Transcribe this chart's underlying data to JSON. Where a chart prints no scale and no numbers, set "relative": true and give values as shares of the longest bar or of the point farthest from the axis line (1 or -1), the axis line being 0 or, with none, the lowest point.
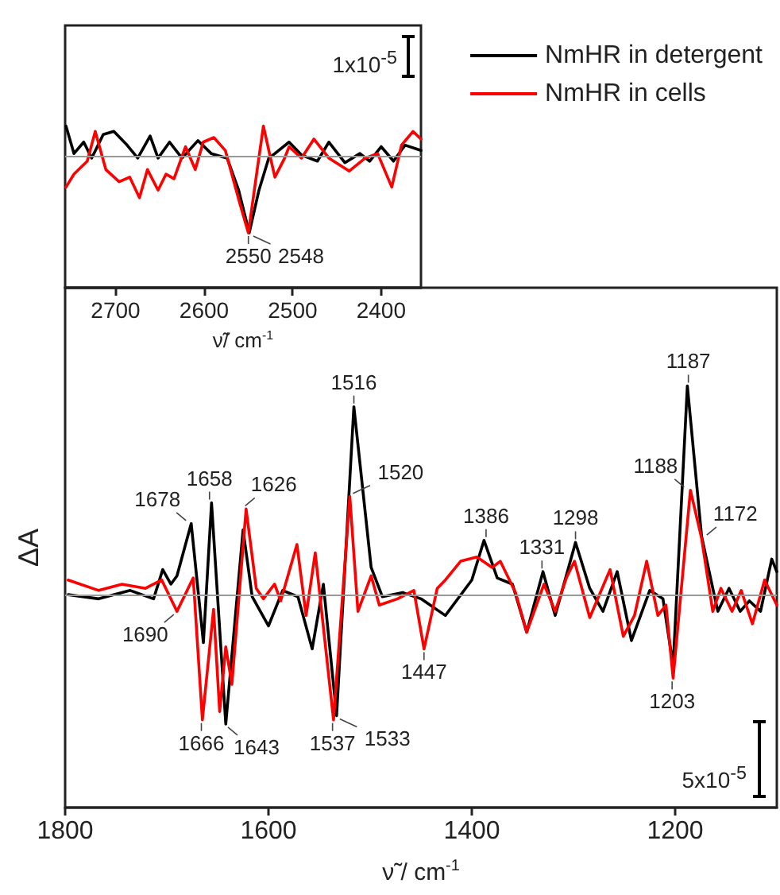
{
  "chart_data": [
    {
      "type": "line",
      "relative": true,
      "xlabel": "ν̃/ cm$^{-1}$",
      "xlim": [
        2757,
        2355
      ],
      "xticks": [
        2700,
        2600,
        2500,
        2400
      ],
      "ref_lines": [
        {
          "axis": "y",
          "value": 0,
          "color": "#999999"
        }
      ],
      "annotations": [
        "1x10$^{-5}$",
        {
          "text": "2550",
          "x": 2550,
          "y": -1.0
        },
        {
          "text": "2548",
          "x": 2548,
          "y": -1.0
        }
      ],
      "series": [
        {
          "color": "#000000",
          "x": [
            2756,
            2747,
            2736,
            2727,
            2714,
            2702,
            2687,
            2675,
            2661,
            2652,
            2639,
            2625,
            2607,
            2592,
            2574,
            2561,
            2549,
            2538,
            2527,
            2520,
            2504,
            2490,
            2472,
            2459,
            2441,
            2424,
            2413,
            2400,
            2386,
            2373,
            2355
          ],
          "values": [
            0.4,
            0.04,
            0.19,
            -0.02,
            0.29,
            0.33,
            0.15,
            -0.02,
            0.27,
            -0.02,
            0.19,
            -0.02,
            0.21,
            0.04,
            -0.02,
            -0.44,
            -1.0,
            -0.44,
            -0.02,
            0.04,
            0.19,
            0.02,
            -0.06,
            0.19,
            -0.08,
            0.04,
            -0.06,
            0.13,
            -0.06,
            0.15,
            0.08
          ]
        },
        {
          "color": "#ff0000",
          "x": [
            2756,
            2747,
            2732,
            2723,
            2711,
            2696,
            2684,
            2673,
            2664,
            2652,
            2643,
            2634,
            2621,
            2610,
            2601,
            2589,
            2576,
            2560,
            2550,
            2540,
            2533,
            2525,
            2520,
            2509,
            2504,
            2490,
            2476,
            2459,
            2436,
            2418,
            2404,
            2388,
            2377,
            2364,
            2355
          ],
          "values": [
            -0.4,
            -0.23,
            -0.06,
            0.33,
            -0.17,
            -0.33,
            -0.27,
            -0.54,
            -0.17,
            -0.44,
            -0.23,
            -0.29,
            0.13,
            -0.17,
            0.19,
            0.25,
            0.08,
            -0.6,
            -1.0,
            -0.17,
            0.4,
            -0.02,
            -0.27,
            -0.02,
            0.13,
            -0.02,
            0.23,
            -0.02,
            -0.19,
            -0.02,
            0.04,
            -0.4,
            0.15,
            0.33,
            0.23
          ]
        }
      ]
    },
    {
      "type": "line",
      "relative": true,
      "xlabel": "ν̃ / cm$^{-1}$",
      "ylabel": "ΔA",
      "xlim": [
        1800,
        1100
      ],
      "xticks": [
        1800,
        1600,
        1400,
        1200
      ],
      "legend": "top right",
      "ref_lines": [
        {
          "axis": "y",
          "value": 0,
          "color": "#999999"
        }
      ],
      "annotations": [
        "5x10$^{-5}$",
        {
          "text": "1678",
          "x": 1678,
          "y": 0.34
        },
        {
          "text": "1658",
          "x": 1658,
          "y": 0.44
        },
        {
          "text": "1626",
          "x": 1626,
          "y": 0.41
        },
        {
          "text": "1520",
          "x": 1520,
          "y": 0.47
        },
        {
          "text": "1516",
          "x": 1516,
          "y": 0.9
        },
        {
          "text": "1386",
          "x": 1386,
          "y": 0.26
        },
        {
          "text": "1331",
          "x": 1331,
          "y": 0.11
        },
        {
          "text": "1298",
          "x": 1298,
          "y": 0.25
        },
        {
          "text": "1188",
          "x": 1188,
          "y": 0.5
        },
        {
          "text": "1187",
          "x": 1187,
          "y": 1.0
        },
        {
          "text": "1172",
          "x": 1172,
          "y": 0.27
        },
        {
          "text": "1690",
          "x": 1690,
          "y": -0.08
        },
        {
          "text": "1666",
          "x": 1666,
          "y": -0.6
        },
        {
          "text": "1643",
          "x": 1643,
          "y": -0.62
        },
        {
          "text": "1537",
          "x": 1537,
          "y": -0.6
        },
        {
          "text": "1533",
          "x": 1533,
          "y": -0.58
        },
        {
          "text": "1447",
          "x": 1447,
          "y": -0.26
        },
        {
          "text": "1203",
          "x": 1203,
          "y": -0.4
        }
      ],
      "series": [
        {
          "name": "NmHR in detergent",
          "color": "#000000",
          "x": [
            1797,
            1767,
            1736,
            1713,
            1704,
            1696,
            1690,
            1676,
            1664,
            1656,
            1642,
            1625,
            1616,
            1600,
            1586,
            1571,
            1557,
            1546,
            1533,
            1516,
            1499,
            1488,
            1468,
            1450,
            1426,
            1400,
            1388,
            1375,
            1360,
            1346,
            1330,
            1318,
            1298,
            1284,
            1271,
            1257,
            1243,
            1225,
            1212,
            1202,
            1188,
            1174,
            1163,
            1158,
            1147,
            1136,
            1127,
            1116,
            1105,
            1100
          ],
          "values": [
            0,
            -0.02,
            0.02,
            -0.02,
            0.12,
            0.05,
            0.09,
            0.34,
            -0.23,
            0.44,
            -0.62,
            0.31,
            -0.01,
            -0.15,
            0.02,
            -0.01,
            -0.26,
            0.05,
            -0.58,
            0.9,
            0.13,
            -0.01,
            0.01,
            -0.02,
            -0.1,
            0.07,
            0.26,
            0.08,
            0.05,
            -0.18,
            0.11,
            -0.1,
            0.25,
            0.03,
            -0.08,
            0.11,
            -0.22,
            0.02,
            -0.02,
            -0.34,
            1.0,
            0.28,
            0.03,
            -0.08,
            0.03,
            -0.08,
            -0.03,
            -0.08,
            0.17,
            0.11
          ]
        },
        {
          "name": "NmHR in cells",
          "color": "#ff0000",
          "x": [
            1797,
            1767,
            1744,
            1721,
            1705,
            1690,
            1674,
            1665,
            1654,
            1648,
            1642,
            1636,
            1622,
            1612,
            1605,
            1594,
            1588,
            1572,
            1563,
            1554,
            1536,
            1520,
            1512,
            1499,
            1491,
            1473,
            1457,
            1447,
            1434,
            1426,
            1411,
            1395,
            1380,
            1372,
            1357,
            1346,
            1329,
            1318,
            1307,
            1299,
            1284,
            1264,
            1251,
            1240,
            1228,
            1217,
            1209,
            1202,
            1185,
            1174,
            1163,
            1155,
            1144,
            1135,
            1124,
            1112,
            1100
          ],
          "values": [
            0.07,
            0.02,
            0.05,
            0.03,
            0.07,
            -0.08,
            0.08,
            -0.6,
            -0.07,
            -0.56,
            -0.25,
            -0.43,
            0.41,
            0.03,
            -0.02,
            0.05,
            -0.03,
            0.24,
            -0.1,
            0.2,
            -0.6,
            0.47,
            -0.08,
            0.09,
            -0.05,
            -0.02,
            0.02,
            -0.26,
            0.03,
            0.07,
            0.16,
            0.18,
            0.13,
            0.16,
            0.01,
            -0.18,
            0.05,
            -0.08,
            0.08,
            0.16,
            -0.11,
            0.12,
            -0.2,
            -0.1,
            0.16,
            -0.1,
            -0.05,
            -0.4,
            0.5,
            0.27,
            -0.08,
            0.03,
            -0.08,
            0.02,
            -0.14,
            0.07,
            -0.05
          ]
        }
      ]
    }
  ]
}
